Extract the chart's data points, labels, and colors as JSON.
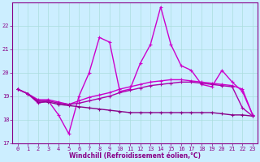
{
  "xlabel": "Windchill (Refroidissement éolien,°C)",
  "background_color": "#cceeff",
  "xlim": [
    -0.5,
    23.5
  ],
  "ylim": [
    17,
    23
  ],
  "yticks": [
    17,
    18,
    19,
    20,
    21,
    22
  ],
  "xticks": [
    0,
    1,
    2,
    3,
    4,
    5,
    6,
    7,
    8,
    9,
    10,
    11,
    12,
    13,
    14,
    15,
    16,
    17,
    18,
    19,
    20,
    21,
    22,
    23
  ],
  "series": [
    {
      "x": [
        0,
        1,
        2,
        3,
        4,
        5,
        6,
        7,
        8,
        9,
        10,
        11,
        12,
        13,
        14,
        15,
        16,
        17,
        18,
        19,
        20,
        21,
        22,
        23
      ],
      "y": [
        19.3,
        19.1,
        18.7,
        18.8,
        18.2,
        17.4,
        19.0,
        20.0,
        21.5,
        21.3,
        19.2,
        19.3,
        20.4,
        21.2,
        22.8,
        21.2,
        20.3,
        20.1,
        19.5,
        19.4,
        20.1,
        19.6,
        19.2,
        18.2
      ],
      "color": "#cc00cc",
      "lw": 1.0
    },
    {
      "x": [
        0,
        1,
        2,
        3,
        4,
        5,
        6,
        7,
        8,
        9,
        10,
        11,
        12,
        13,
        14,
        15,
        16,
        17,
        18,
        19,
        20,
        21,
        22,
        23
      ],
      "y": [
        19.3,
        19.1,
        18.85,
        18.85,
        18.75,
        18.65,
        18.8,
        18.95,
        19.05,
        19.15,
        19.3,
        19.4,
        19.5,
        19.6,
        19.65,
        19.7,
        19.7,
        19.65,
        19.6,
        19.55,
        19.5,
        19.45,
        19.3,
        18.2
      ],
      "color": "#cc00cc",
      "lw": 1.0
    },
    {
      "x": [
        0,
        1,
        2,
        3,
        4,
        5,
        6,
        7,
        8,
        9,
        10,
        11,
        12,
        13,
        14,
        15,
        16,
        17,
        18,
        19,
        20,
        21,
        22,
        23
      ],
      "y": [
        19.3,
        19.1,
        18.75,
        18.75,
        18.65,
        18.6,
        18.55,
        18.5,
        18.45,
        18.4,
        18.35,
        18.3,
        18.3,
        18.3,
        18.3,
        18.3,
        18.3,
        18.3,
        18.3,
        18.3,
        18.25,
        18.2,
        18.2,
        18.15
      ],
      "color": "#880088",
      "lw": 1.0
    },
    {
      "x": [
        0,
        1,
        2,
        3,
        4,
        5,
        6,
        7,
        8,
        9,
        10,
        11,
        12,
        13,
        14,
        15,
        16,
        17,
        18,
        19,
        20,
        21,
        22,
        23
      ],
      "y": [
        19.3,
        19.1,
        18.8,
        18.8,
        18.7,
        18.65,
        18.7,
        18.8,
        18.9,
        19.0,
        19.15,
        19.25,
        19.35,
        19.45,
        19.5,
        19.55,
        19.6,
        19.6,
        19.55,
        19.5,
        19.45,
        19.4,
        18.5,
        18.15
      ],
      "color": "#aa00aa",
      "lw": 1.0
    }
  ]
}
